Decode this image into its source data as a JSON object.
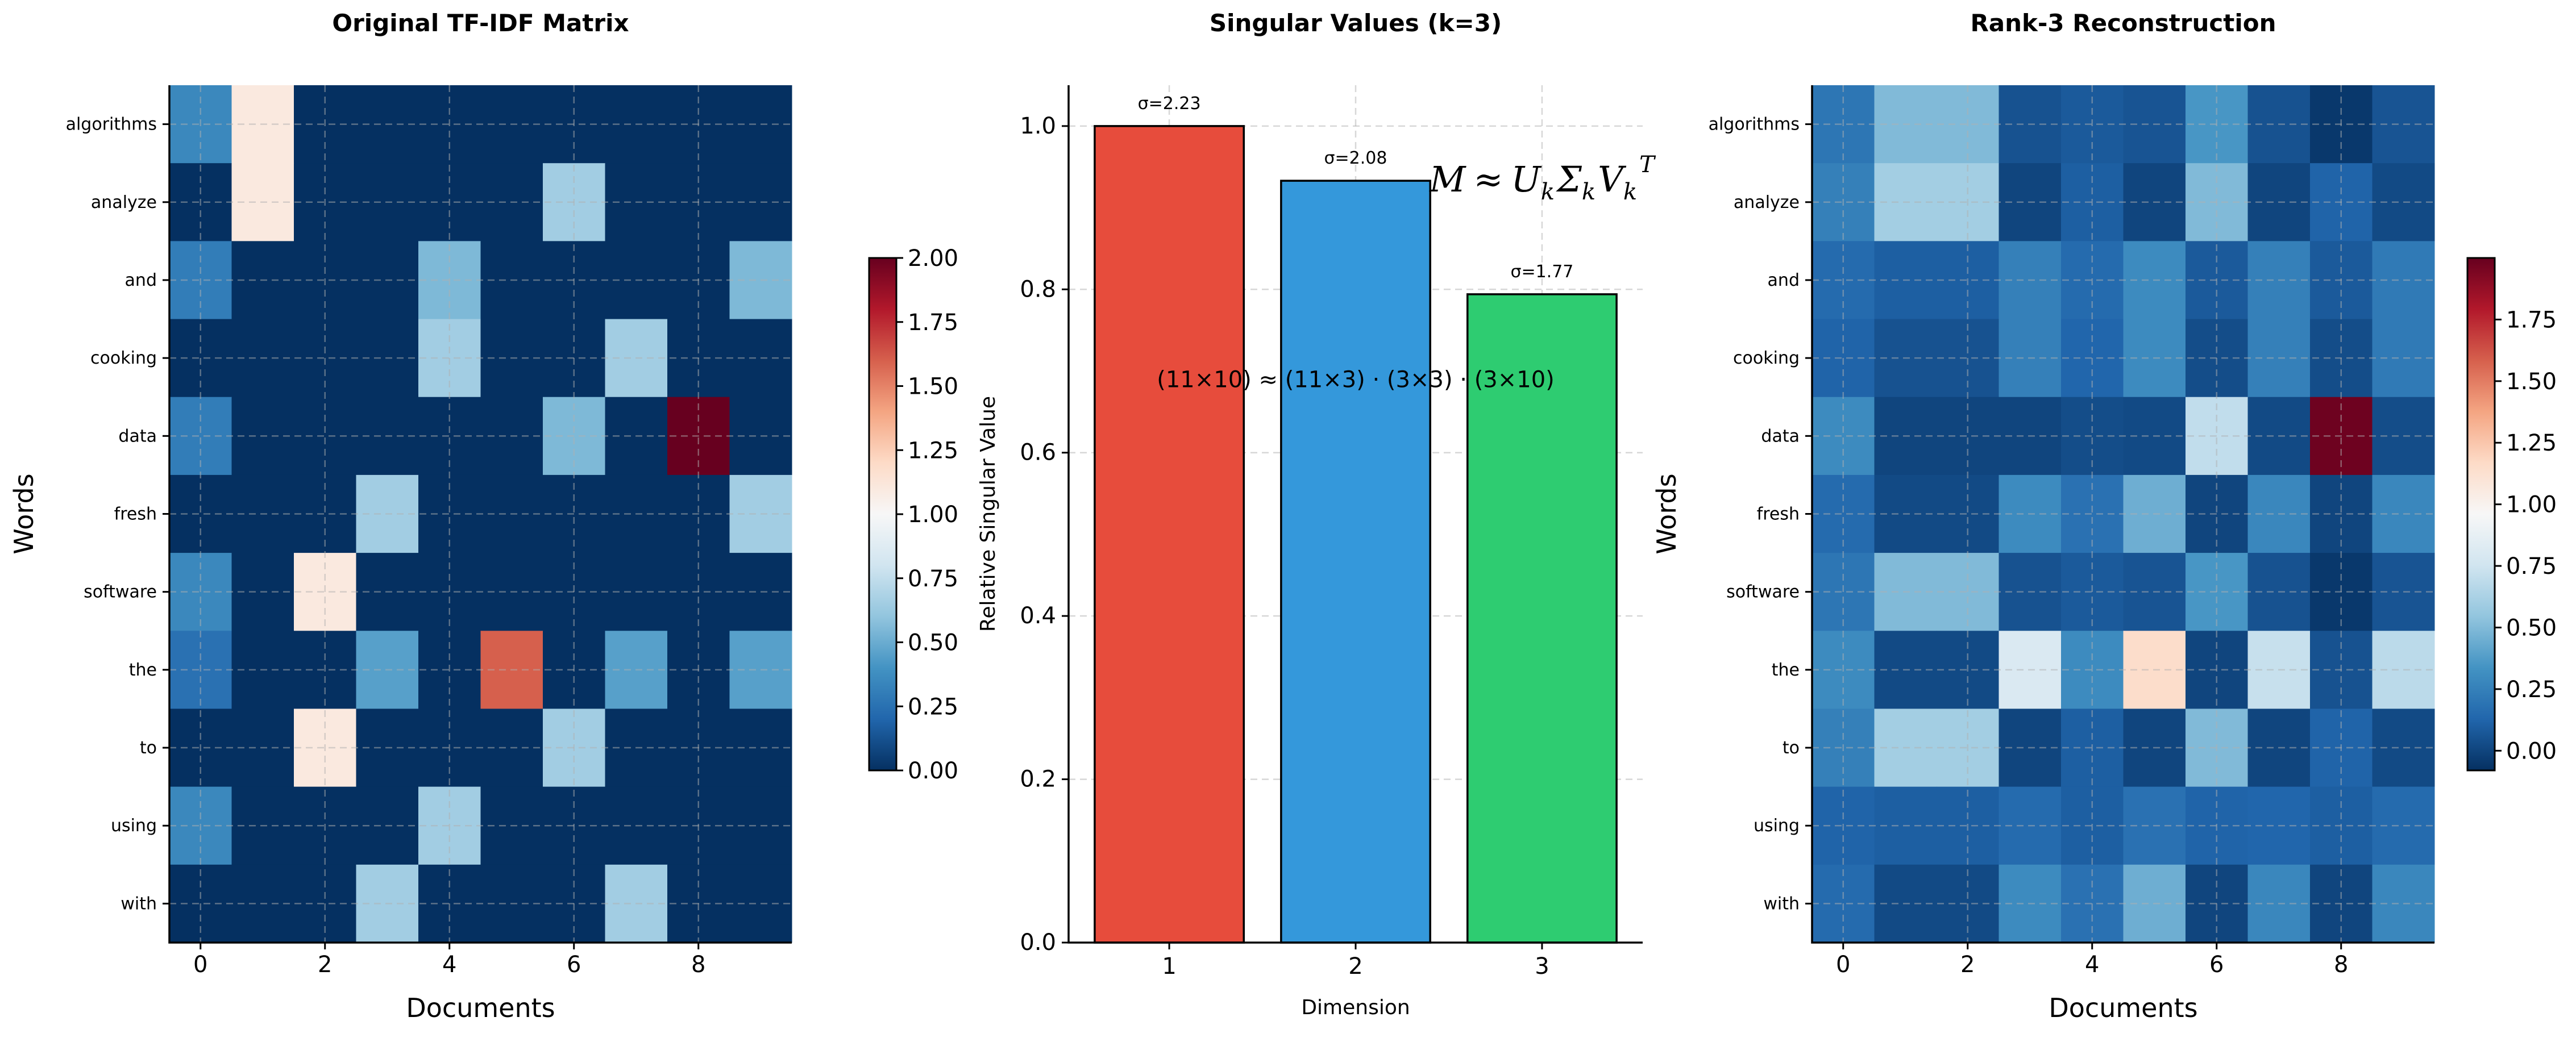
{
  "chart_data": [
    {
      "type": "heatmap",
      "title": "Original TF-IDF Matrix",
      "xlabel": "Documents",
      "ylabel": "Words",
      "xticks": [
        0,
        2,
        4,
        6,
        8
      ],
      "rows": [
        "algorithms",
        "analyze",
        "and",
        "cooking",
        "data",
        "fresh",
        "software",
        "the",
        "to",
        "using",
        "with"
      ],
      "colormap": "RdBu_r",
      "vmin": 0,
      "vmax": 2.0,
      "colorbar_ticks": [
        "0.00",
        "0.25",
        "0.50",
        "0.75",
        "1.00",
        "1.25",
        "1.50",
        "1.75",
        "2.00"
      ],
      "grid": true,
      "values": [
        [
          0.35,
          1.1,
          0,
          0,
          0,
          0,
          0,
          0,
          0,
          0
        ],
        [
          0,
          1.1,
          0,
          0,
          0,
          0,
          0.65,
          0,
          0,
          0
        ],
        [
          0.3,
          0,
          0,
          0,
          0.55,
          0,
          0,
          0,
          0,
          0.55
        ],
        [
          0,
          0,
          0,
          0,
          0.65,
          0,
          0,
          0.65,
          0,
          0
        ],
        [
          0.3,
          0,
          0,
          0,
          0,
          0,
          0.55,
          0,
          2.0,
          0
        ],
        [
          0,
          0,
          0,
          0.65,
          0,
          0,
          0,
          0,
          0,
          0.65
        ],
        [
          0.35,
          0,
          1.1,
          0,
          0,
          0,
          0,
          0,
          0,
          0
        ],
        [
          0.25,
          0,
          0,
          0.45,
          0,
          1.6,
          0,
          0.45,
          0,
          0.45
        ],
        [
          0,
          0,
          1.1,
          0,
          0,
          0,
          0.65,
          0,
          0,
          0
        ],
        [
          0.35,
          0,
          0,
          0,
          0.65,
          0,
          0,
          0,
          0,
          0
        ],
        [
          0,
          0,
          0,
          0.65,
          0,
          0,
          0,
          0.65,
          0,
          0
        ]
      ]
    },
    {
      "type": "bar",
      "title": "Singular Values (k=3)",
      "xlabel": "Dimension",
      "ylabel": "Relative Singular Value",
      "categories": [
        "1",
        "2",
        "3"
      ],
      "values": [
        1.0,
        0.933,
        0.794
      ],
      "data_labels": [
        "σ=2.23",
        "σ=2.08",
        "σ=1.77"
      ],
      "colors": [
        "#e74c3c",
        "#3498db",
        "#2ecc71"
      ],
      "ylim": [
        0,
        1.05
      ],
      "yticks": [
        "0.0",
        "0.2",
        "0.4",
        "0.6",
        "0.8",
        "1.0"
      ],
      "grid": true,
      "annotations": {
        "formula": "M ≈ U_k Σ_k V_k^T",
        "formula_parts": {
          "M": "M",
          "approx": "≈",
          "U": "U",
          "S": "Σ",
          "V": "V",
          "sub": "k",
          "sup": "T"
        },
        "dimensions": "(11×10) ≈ (11×3) · (3×3) · (3×10)"
      }
    },
    {
      "type": "heatmap",
      "title": "Rank-3 Reconstruction",
      "xlabel": "Documents",
      "ylabel": "Words",
      "xticks": [
        0,
        2,
        4,
        6,
        8
      ],
      "rows": [
        "algorithms",
        "analyze",
        "and",
        "cooking",
        "data",
        "fresh",
        "software",
        "the",
        "to",
        "using",
        "with"
      ],
      "colormap": "RdBu_r",
      "vmin": -0.08,
      "vmax": 2.0,
      "colorbar_ticks": [
        "0.00",
        "0.25",
        "0.50",
        "0.75",
        "1.00",
        "1.25",
        "1.50",
        "1.75"
      ],
      "grid": true,
      "values": [
        [
          0.2,
          0.5,
          0.5,
          0.05,
          0.08,
          0.06,
          0.35,
          0.05,
          -0.05,
          0.06
        ],
        [
          0.25,
          0.6,
          0.6,
          0.0,
          0.1,
          0.0,
          0.5,
          0.0,
          0.12,
          0.02
        ],
        [
          0.15,
          0.1,
          0.1,
          0.25,
          0.15,
          0.3,
          0.08,
          0.25,
          0.08,
          0.22
        ],
        [
          0.12,
          0.05,
          0.05,
          0.25,
          0.13,
          0.3,
          0.03,
          0.25,
          0.03,
          0.22
        ],
        [
          0.3,
          0.0,
          0.0,
          0.0,
          0.03,
          0.02,
          0.7,
          0.02,
          1.98,
          0.03
        ],
        [
          0.15,
          0.02,
          0.02,
          0.3,
          0.18,
          0.45,
          0.0,
          0.28,
          0.0,
          0.28
        ],
        [
          0.2,
          0.5,
          0.5,
          0.05,
          0.08,
          0.06,
          0.35,
          0.05,
          -0.05,
          0.06
        ],
        [
          0.3,
          0.02,
          0.02,
          0.8,
          0.3,
          1.15,
          0.0,
          0.72,
          0.05,
          0.68
        ],
        [
          0.25,
          0.6,
          0.6,
          0.0,
          0.1,
          0.0,
          0.5,
          0.0,
          0.12,
          0.02
        ],
        [
          0.12,
          0.1,
          0.1,
          0.15,
          0.1,
          0.18,
          0.12,
          0.13,
          0.1,
          0.15
        ],
        [
          0.15,
          0.02,
          0.02,
          0.3,
          0.18,
          0.45,
          0.0,
          0.28,
          0.0,
          0.28
        ]
      ]
    }
  ]
}
